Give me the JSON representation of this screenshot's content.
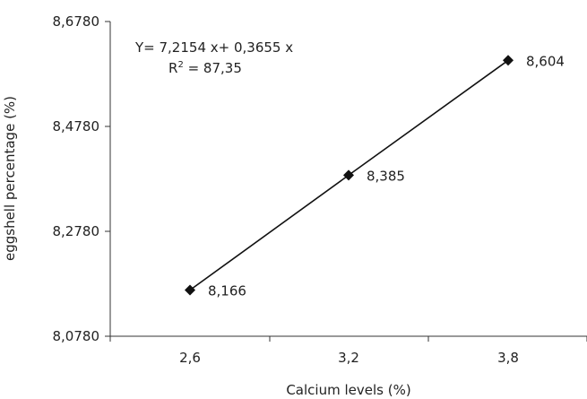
{
  "chart_data": {
    "type": "line",
    "categories": [
      "2,6",
      "3,2",
      "3,8"
    ],
    "x": [
      2.6,
      3.2,
      3.8
    ],
    "values": [
      8.166,
      8.385,
      8.604
    ],
    "data_labels": [
      "8,166",
      "8,385",
      "8,604"
    ],
    "ylim": [
      8.078,
      8.678
    ],
    "yticks": [
      8.078,
      8.278,
      8.478,
      8.678
    ],
    "ytick_labels": [
      "8,0780",
      "8,2780",
      "8,4780",
      "8,6780"
    ],
    "xlabel": "Calcium levels  (%)",
    "ylabel": "eggshell percentage  (%)",
    "equation": "Y= 7,2154 x+ 0,3655 x",
    "r_squared_prefix": "R",
    "r_squared_sup": "2",
    "r_squared_value": " = 87,35",
    "grid": false,
    "marker": "diamond",
    "series_color": "#111111"
  }
}
